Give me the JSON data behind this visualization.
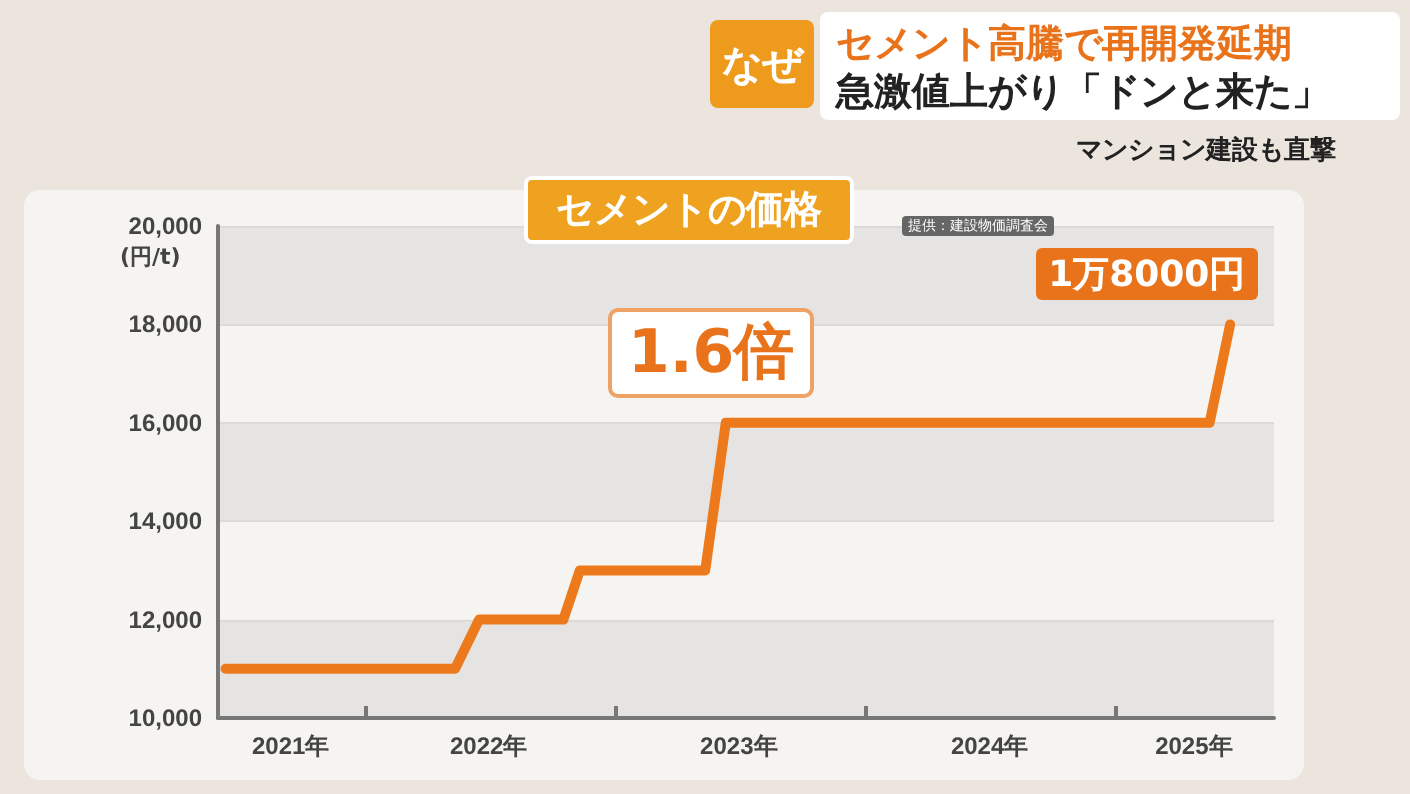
{
  "chart_data": {
    "type": "line",
    "title": "セメントの価格",
    "ylabel": "(円/t)",
    "annotations": [
      "なぜ",
      "セメント高騰で再開発延期",
      "急激値上がり「ドンと来た」",
      "マンション建設も直撃",
      "提供：建設物価調査会",
      "1.6倍",
      {
        "text": "1万8000円",
        "x": "2025-06-17",
        "y": 18000
      }
    ],
    "x": [
      "2021-06-12",
      "2022-05-13",
      "2022-06-17",
      "2022-10-18",
      "2022-11-11",
      "2023-05-13",
      "2023-06-12",
      "2025-05-18",
      "2025-06-17"
    ],
    "series": [
      {
        "color": "#ec7a1c",
        "values": [
          11000,
          11000,
          12000,
          12000,
          13000,
          13000,
          16000,
          16000,
          18000
        ]
      }
    ],
    "xlim": [
      "2021-06-01",
      "2025-08-20"
    ],
    "xticks": [
      {
        "value": "2021-09-15",
        "label": "2021年"
      },
      {
        "value": "2022-01-01",
        "label": null
      },
      {
        "value": "2022-07-01",
        "label": "2022年"
      },
      {
        "value": "2023-01-01",
        "label": null
      },
      {
        "value": "2023-07-01",
        "label": "2023年"
      },
      {
        "value": "2024-01-01",
        "label": null
      },
      {
        "value": "2024-07-01",
        "label": "2024年"
      },
      {
        "value": "2025-01-01",
        "label": null
      },
      {
        "value": "2025-04-25",
        "label": "2025年"
      }
    ],
    "ylim": [
      10000,
      20000
    ],
    "yticks": [
      {
        "value": 10000,
        "label": "10,000"
      },
      {
        "value": 12000,
        "label": "12,000"
      },
      {
        "value": 14000,
        "label": "14,000"
      },
      {
        "value": 16000,
        "label": "16,000"
      },
      {
        "value": 18000,
        "label": "18,000"
      },
      {
        "value": 20000,
        "label": "20,000"
      }
    ],
    "grid": "y",
    "marker": "none",
    "line_style": "solid"
  }
}
